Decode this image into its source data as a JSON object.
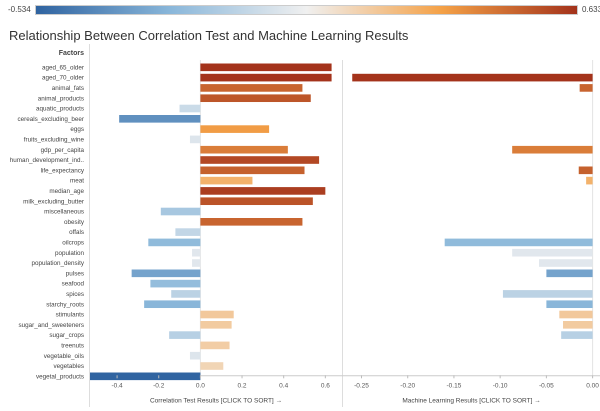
{
  "title": "Relationship Between Correlation Test and Machine Learning Results",
  "legend": {
    "min_label": "-0.534",
    "max_label": "0.633",
    "gradient_colors": [
      "#2f63a0",
      "#8ab7da",
      "#f0f0f0",
      "#f4a147",
      "#a3321b"
    ]
  },
  "chart_data": [
    {
      "type": "bar",
      "orientation": "horizontal",
      "title": "Relationship Between Correlation Test and Machine Learning Results",
      "row_header": "Factors",
      "xlabel": "Correlation Test Results [CLICK TO SORT] →",
      "xlim": [
        -0.53,
        0.68
      ],
      "xticks": [
        "-0.4",
        "-0.2",
        "0.0",
        "0.2",
        "0.4",
        "0.6"
      ],
      "categories": [
        "aged_65_older",
        "aged_70_older",
        "animal_fats",
        "animal_products",
        "aquatic_products",
        "cereals_excluding_beer",
        "eggs",
        "fruits_excluding_wine",
        "gdp_per_capita",
        "human_development_ind..",
        "life_expectancy",
        "meat",
        "median_age",
        "milk_excluding_butter",
        "miscellaneous",
        "obesity",
        "offals",
        "oilcrops",
        "population",
        "population_density",
        "pulses",
        "seafood",
        "spices",
        "starchy_roots",
        "stimulants",
        "sugar_and_sweeteners",
        "sugar_crops",
        "treenuts",
        "vegetable_oils",
        "vegetables",
        "vegetal_products"
      ],
      "values": [
        0.63,
        0.63,
        0.49,
        0.53,
        -0.1,
        -0.39,
        0.33,
        -0.05,
        0.42,
        0.57,
        0.5,
        0.25,
        0.6,
        0.54,
        -0.19,
        0.49,
        -0.12,
        -0.25,
        -0.04,
        -0.04,
        -0.33,
        -0.24,
        -0.14,
        -0.27,
        0.16,
        0.15,
        -0.15,
        0.14,
        -0.05,
        0.11,
        -0.53
      ]
    },
    {
      "type": "bar",
      "orientation": "horizontal",
      "xlabel": "Machine Learning Results [CLICK TO SORT] →",
      "xlim": [
        -0.27,
        0.008
      ],
      "xticks": [
        "-0.25",
        "-0.20",
        "-0.15",
        "-0.10",
        "-0.05",
        "0.00"
      ],
      "categories": [
        "aged_65_older",
        "aged_70_older",
        "animal_fats",
        "animal_products",
        "aquatic_products",
        "cereals_excluding_beer",
        "eggs",
        "fruits_excluding_wine",
        "gdp_per_capita",
        "human_development_ind..",
        "life_expectancy",
        "meat",
        "median_age",
        "milk_excluding_butter",
        "miscellaneous",
        "obesity",
        "offals",
        "oilcrops",
        "population",
        "population_density",
        "pulses",
        "seafood",
        "spices",
        "starchy_roots",
        "stimulants",
        "sugar_and_sweeteners",
        "sugar_crops",
        "treenuts",
        "vegetable_oils",
        "vegetables",
        "vegetal_products"
      ],
      "values": [
        0,
        -0.26,
        -0.014,
        0,
        0,
        0,
        0,
        0,
        -0.087,
        0,
        -0.015,
        -0.007,
        0,
        0,
        0,
        0,
        0,
        -0.16,
        -0.087,
        -0.058,
        -0.05,
        0,
        -0.097,
        -0.05,
        -0.036,
        -0.032,
        -0.034,
        0,
        0,
        0,
        0
      ]
    }
  ]
}
